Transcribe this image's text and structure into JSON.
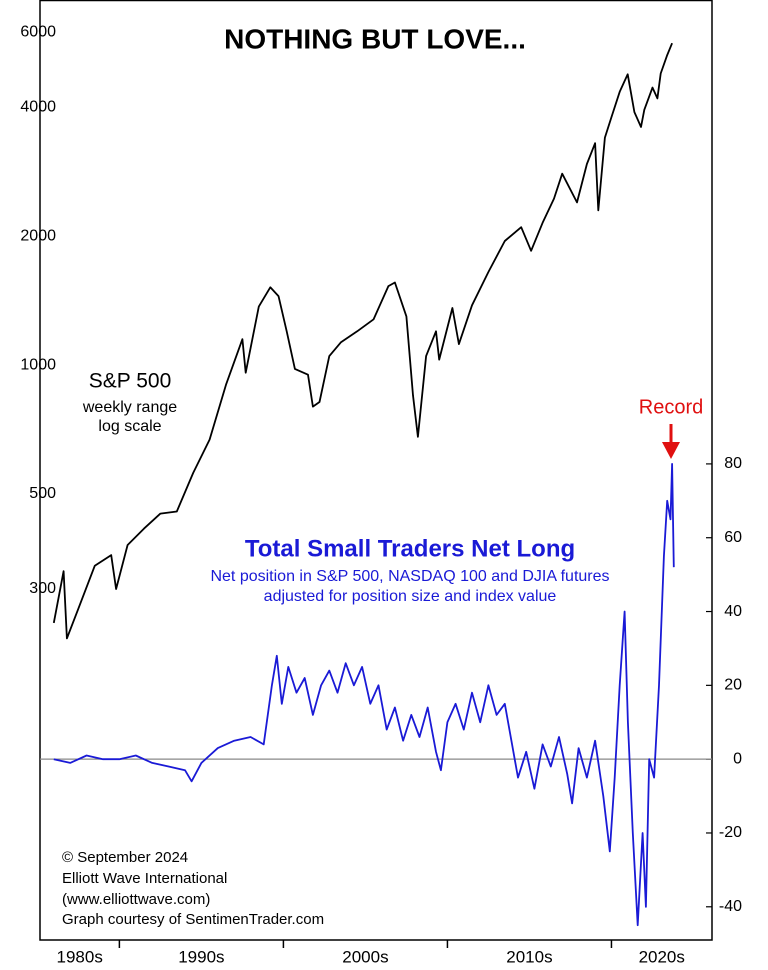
{
  "chart_data": {
    "type": "line",
    "title": "NOTHING BUT LOVE...",
    "sp_note": [
      "weekly range",
      "log scale"
    ],
    "traders_note": [
      "Net position in S&P 500, NASDAQ 100  and DJIA futures",
      "adjusted for position size and index value"
    ],
    "record_label": "Record",
    "credits": [
      "© September 2024",
      "Elliott Wave International",
      "(www.elliottwave.com)",
      "Graph courtesy of SentimenTrader.com"
    ],
    "xlim": [
      1986.16,
      2027.13
    ],
    "xticks": [
      1991,
      2001,
      2011,
      2021
    ],
    "x_labels": [
      "1980s",
      "1990s",
      "2000s",
      "2010s",
      "2020s"
    ],
    "log_y": true,
    "ylim": [
      45.4,
      7129
    ],
    "yticks": [
      300,
      500,
      1000,
      2000,
      4000,
      6000
    ],
    "y2lim": [
      -49,
      205.7
    ],
    "y2ticks": [
      -40,
      -20,
      0,
      20,
      40,
      60,
      80
    ],
    "reference_line": 0,
    "series": [
      {
        "name": "S&P 500",
        "color": "#000000",
        "x": [
          1987.0,
          1987.6,
          1987.8,
          1988.5,
          1989.5,
          1990.5,
          1990.8,
          1991.5,
          1992.5,
          1993.5,
          1994.5,
          1995.5,
          1996.5,
          1997.5,
          1998.5,
          1998.7,
          1999.5,
          2000.2,
          2000.7,
          2001.2,
          2001.7,
          2002.5,
          2002.8,
          2003.2,
          2003.8,
          2004.5,
          2005.5,
          2006.5,
          2007.4,
          2007.8,
          2008.5,
          2008.9,
          2009.2,
          2009.7,
          2010.3,
          2010.5,
          2011.3,
          2011.7,
          2012.5,
          2013.5,
          2014.5,
          2015.5,
          2016.1,
          2016.8,
          2017.5,
          2018.0,
          2018.9,
          2019.5,
          2020.0,
          2020.2,
          2020.6,
          2021.0,
          2021.5,
          2021.99,
          2022.4,
          2022.8,
          2023.0,
          2023.5,
          2023.8,
          2024.0,
          2024.4,
          2024.7
        ],
        "values": [
          250,
          330,
          230,
          270,
          340,
          360,
          300,
          380,
          415,
          450,
          455,
          560,
          670,
          900,
          1150,
          960,
          1370,
          1520,
          1450,
          1200,
          980,
          950,
          800,
          820,
          1050,
          1130,
          1200,
          1280,
          1530,
          1560,
          1300,
          850,
          680,
          1050,
          1200,
          1030,
          1360,
          1120,
          1380,
          1650,
          1950,
          2100,
          1850,
          2150,
          2450,
          2800,
          2400,
          2950,
          3300,
          2300,
          3400,
          3800,
          4350,
          4780,
          3900,
          3600,
          3950,
          4450,
          4200,
          4800,
          5300,
          5650
        ]
      },
      {
        "name": "Total Small Traders Net Long",
        "color": "#1a1ad6",
        "axis": "y2",
        "x": [
          1987.0,
          1988,
          1989,
          1990,
          1991,
          1992,
          1993,
          1994,
          1995,
          1995.4,
          1996,
          1997,
          1998,
          1999,
          1999.8,
          2000.3,
          2000.6,
          2000.9,
          2001.3,
          2001.8,
          2002.3,
          2002.8,
          2003.3,
          2003.8,
          2004.3,
          2004.8,
          2005.3,
          2005.8,
          2006.3,
          2006.8,
          2007.3,
          2007.8,
          2008.3,
          2008.8,
          2009.3,
          2009.8,
          2010.3,
          2010.6,
          2011.0,
          2011.5,
          2012.0,
          2012.5,
          2013.0,
          2013.5,
          2014.0,
          2014.5,
          2014.9,
          2015.3,
          2015.8,
          2016.3,
          2016.8,
          2017.3,
          2017.8,
          2018.3,
          2018.6,
          2019.0,
          2019.5,
          2020.0,
          2020.5,
          2020.9,
          2021.2,
          2021.5,
          2021.8,
          2022.0,
          2022.3,
          2022.6,
          2022.9,
          2023.1,
          2023.3,
          2023.6,
          2023.9,
          2024.2,
          2024.4,
          2024.6,
          2024.7,
          2024.8
        ],
        "values": [
          0,
          -1,
          1,
          0,
          0,
          1,
          -1,
          -2,
          -3,
          -6,
          -1,
          3,
          5,
          6,
          4,
          20,
          28,
          15,
          25,
          18,
          22,
          12,
          20,
          24,
          18,
          26,
          20,
          25,
          15,
          20,
          8,
          14,
          5,
          12,
          6,
          14,
          2,
          -3,
          10,
          15,
          8,
          18,
          10,
          20,
          12,
          15,
          5,
          -5,
          2,
          -8,
          4,
          -2,
          6,
          -4,
          -12,
          3,
          -5,
          5,
          -10,
          -25,
          -5,
          20,
          40,
          10,
          -20,
          -45,
          -20,
          -40,
          0,
          -5,
          20,
          55,
          70,
          65,
          80,
          52
        ]
      }
    ]
  }
}
